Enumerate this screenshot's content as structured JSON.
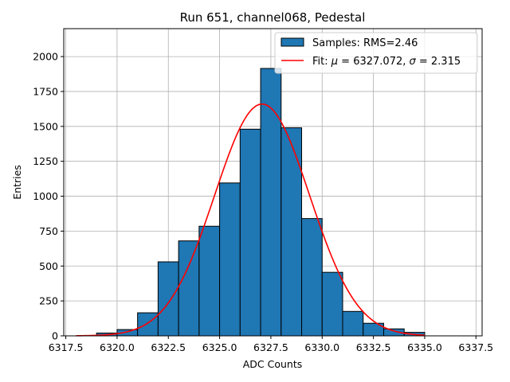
{
  "chart_data": {
    "type": "bar",
    "title": "Run 651, channel068, Pedestal",
    "xlabel": "ADC Counts",
    "ylabel": "Entries",
    "xlim": [
      6317.4,
      6337.8
    ],
    "ylim": [
      0,
      2200
    ],
    "grid": true,
    "legend_position": "top-right",
    "xticks": [
      6317.5,
      6320.0,
      6322.5,
      6325.0,
      6327.5,
      6330.0,
      6332.5,
      6335.0,
      6337.5
    ],
    "xtick_labels": [
      "6317.5",
      "6320.0",
      "6322.5",
      "6325.0",
      "6327.5",
      "6330.0",
      "6332.5",
      "6335.0",
      "6337.5"
    ],
    "yticks": [
      0,
      250,
      500,
      750,
      1000,
      1250,
      1500,
      1750,
      2000
    ],
    "ytick_labels": [
      "0",
      "250",
      "500",
      "750",
      "1000",
      "1250",
      "1500",
      "1750",
      "2000"
    ],
    "histogram": {
      "name": "Samples: RMS=2.46",
      "bin_edges": [
        6319.0,
        6320.0,
        6321.0,
        6322.0,
        6323.0,
        6324.0,
        6325.0,
        6326.0,
        6327.0,
        6328.0,
        6329.0,
        6330.0,
        6331.0,
        6332.0,
        6333.0,
        6334.0,
        6335.0
      ],
      "counts": [
        20,
        45,
        165,
        530,
        680,
        785,
        1095,
        1480,
        1915,
        1490,
        840,
        455,
        175,
        90,
        50,
        25
      ],
      "color": "#1f77b4",
      "edgecolor": "#000000"
    },
    "fit": {
      "name": "Fit: μ = 6327.072, σ = 2.315",
      "mu": 6327.072,
      "sigma": 2.315,
      "amplitude": 1660,
      "x_range": [
        6318.0,
        6335.0
      ],
      "color": "#ff0000"
    },
    "legend": {
      "entries": [
        {
          "label": "Samples: RMS=2.46",
          "kind": "patch",
          "color": "#1f77b4"
        },
        {
          "label_prefix": "Fit: ",
          "mu_symbol": "μ",
          "mu_text": " = 6327.072, ",
          "sigma_symbol": "σ",
          "sigma_text": " = 2.315",
          "kind": "line",
          "color": "#ff0000"
        }
      ]
    }
  }
}
